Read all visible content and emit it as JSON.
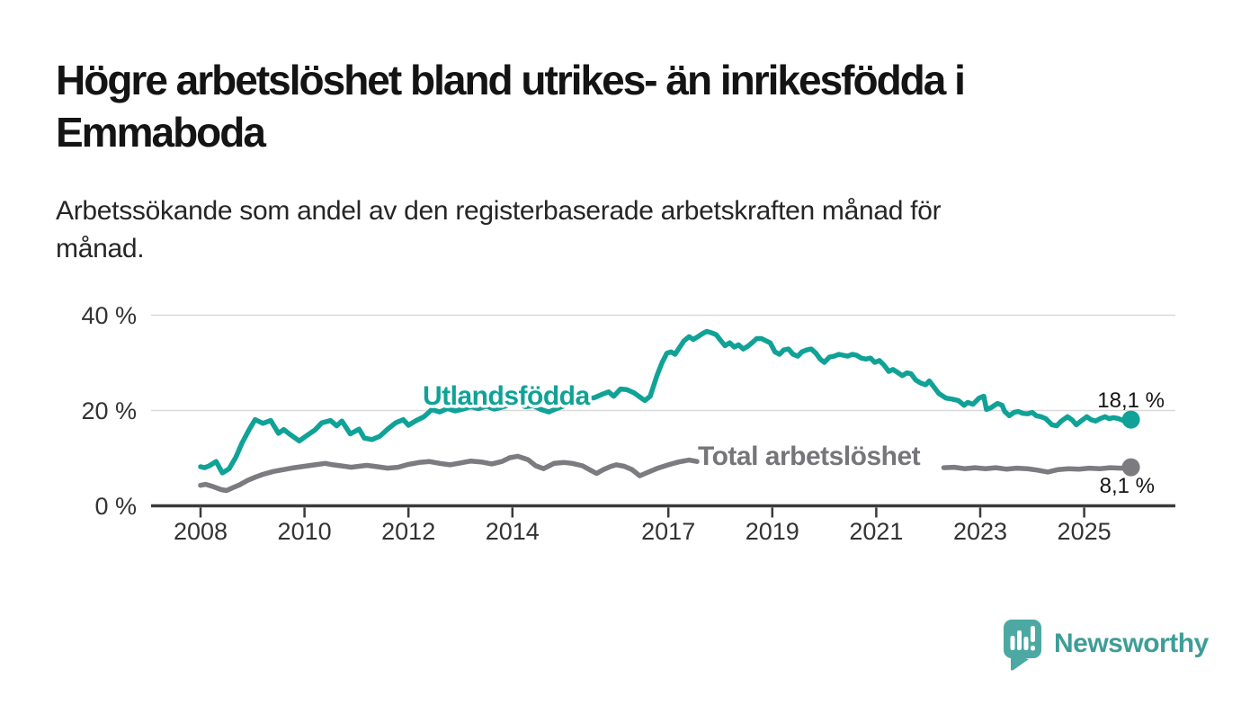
{
  "header": {
    "title": "Högre arbetslöshet bland utrikes- än inrikesfödda i Emmaboda",
    "title_lines": [
      "Högre arbetslöshet bland utrikes- än inrikesfödda i",
      "Emmaboda"
    ],
    "subtitle": "Arbetssökande som andel av den registerbaserade arbetskraften månad för månad.",
    "subtitle_lines": [
      "Arbetssökande som andel av den registerbaserade arbetskraften månad för",
      "månad."
    ]
  },
  "branding": {
    "name": "Newsworthy",
    "icon": "speech-bubble-bar-chart-icon",
    "text_color": "#3E9D97",
    "icon_color": "#4CA8A2"
  },
  "colors": {
    "foreign_born_line": "#10A297",
    "total_line": "#7B7B80",
    "total_label": "#75757A",
    "grid": "#D9D9D9",
    "axis": "#3A3A3A",
    "tick_text": "#333333",
    "value_text": "#141414"
  },
  "chart_data": {
    "type": "line",
    "unit": "%",
    "xlim": [
      2007.05,
      2026.75
    ],
    "ylim": [
      0,
      42
    ],
    "grid": "horizontal-only",
    "legend_position": "inline-labels",
    "y_ticks": [
      {
        "value": 0,
        "label": "0 %"
      },
      {
        "value": 20,
        "label": "20 %"
      },
      {
        "value": 40,
        "label": "40 %"
      }
    ],
    "x_ticks": [
      {
        "year": 2008,
        "label": "2008"
      },
      {
        "year": 2010,
        "label": "2010"
      },
      {
        "year": 2012,
        "label": "2012"
      },
      {
        "year": 2014,
        "label": "2014"
      },
      {
        "year": 2017,
        "label": "2017"
      },
      {
        "year": 2019,
        "label": "2019"
      },
      {
        "year": 2021,
        "label": "2021"
      },
      {
        "year": 2023,
        "label": "2023"
      },
      {
        "year": 2025,
        "label": "2025"
      }
    ],
    "series": [
      {
        "name": "Utlandsfödda",
        "color": "#10A297",
        "end_value": 18.1,
        "end_label": "18,1 %",
        "points": [
          [
            2008.0,
            8.2
          ],
          [
            2008.08,
            8.0
          ],
          [
            2008.17,
            8.4
          ],
          [
            2008.3,
            9.3
          ],
          [
            2008.42,
            6.9
          ],
          [
            2008.55,
            7.8
          ],
          [
            2008.68,
            10.2
          ],
          [
            2008.8,
            13.2
          ],
          [
            2008.93,
            15.9
          ],
          [
            2009.05,
            18.1
          ],
          [
            2009.2,
            17.3
          ],
          [
            2009.35,
            17.9
          ],
          [
            2009.5,
            15.2
          ],
          [
            2009.6,
            16.0
          ],
          [
            2009.72,
            15.0
          ],
          [
            2009.9,
            13.6
          ],
          [
            2010.05,
            14.8
          ],
          [
            2010.2,
            15.9
          ],
          [
            2010.33,
            17.4
          ],
          [
            2010.5,
            17.9
          ],
          [
            2010.62,
            16.8
          ],
          [
            2010.72,
            17.8
          ],
          [
            2010.88,
            15.1
          ],
          [
            2011.05,
            16.1
          ],
          [
            2011.15,
            14.2
          ],
          [
            2011.3,
            13.9
          ],
          [
            2011.45,
            14.6
          ],
          [
            2011.6,
            16.1
          ],
          [
            2011.75,
            17.4
          ],
          [
            2011.9,
            18.1
          ],
          [
            2012.0,
            16.9
          ],
          [
            2012.15,
            17.9
          ],
          [
            2012.3,
            18.7
          ],
          [
            2012.45,
            20.2
          ],
          [
            2012.6,
            19.7
          ],
          [
            2012.75,
            20.4
          ],
          [
            2012.9,
            19.9
          ],
          [
            2013.05,
            20.3
          ],
          [
            2013.2,
            20.8
          ],
          [
            2013.35,
            20.4
          ],
          [
            2013.5,
            20.9
          ],
          [
            2013.65,
            20.3
          ],
          [
            2013.8,
            20.7
          ],
          [
            2013.95,
            21.2
          ],
          [
            2014.1,
            21.4
          ],
          [
            2014.25,
            20.8
          ],
          [
            2014.4,
            21.0
          ],
          [
            2014.55,
            20.2
          ],
          [
            2014.7,
            19.7
          ],
          [
            2014.85,
            20.4
          ],
          [
            2015.0,
            21.0
          ],
          [
            2015.15,
            21.6
          ],
          [
            2015.3,
            21.9
          ],
          [
            2015.45,
            22.3
          ],
          [
            2015.6,
            22.8
          ],
          [
            2015.75,
            23.5
          ],
          [
            2015.85,
            23.9
          ],
          [
            2015.95,
            23.0
          ],
          [
            2016.08,
            24.5
          ],
          [
            2016.2,
            24.4
          ],
          [
            2016.34,
            23.7
          ],
          [
            2016.48,
            22.6
          ],
          [
            2016.55,
            22.1
          ],
          [
            2016.65,
            23.0
          ],
          [
            2016.78,
            27.3
          ],
          [
            2016.88,
            30.1
          ],
          [
            2016.97,
            32.0
          ],
          [
            2017.05,
            32.3
          ],
          [
            2017.13,
            31.8
          ],
          [
            2017.22,
            33.3
          ],
          [
            2017.3,
            34.6
          ],
          [
            2017.4,
            35.5
          ],
          [
            2017.48,
            34.9
          ],
          [
            2017.57,
            35.5
          ],
          [
            2017.65,
            36.1
          ],
          [
            2017.74,
            36.6
          ],
          [
            2017.83,
            36.3
          ],
          [
            2017.92,
            35.9
          ],
          [
            2018.0,
            34.8
          ],
          [
            2018.09,
            33.6
          ],
          [
            2018.18,
            34.2
          ],
          [
            2018.27,
            33.3
          ],
          [
            2018.35,
            33.8
          ],
          [
            2018.44,
            32.9
          ],
          [
            2018.53,
            33.5
          ],
          [
            2018.61,
            34.2
          ],
          [
            2018.7,
            35.1
          ],
          [
            2018.79,
            35.1
          ],
          [
            2018.88,
            34.6
          ],
          [
            2018.96,
            34.2
          ],
          [
            2019.05,
            32.3
          ],
          [
            2019.14,
            31.8
          ],
          [
            2019.22,
            32.7
          ],
          [
            2019.31,
            32.9
          ],
          [
            2019.4,
            31.8
          ],
          [
            2019.49,
            31.4
          ],
          [
            2019.57,
            32.3
          ],
          [
            2019.66,
            32.7
          ],
          [
            2019.75,
            32.9
          ],
          [
            2019.84,
            32.0
          ],
          [
            2019.92,
            30.8
          ],
          [
            2020.0,
            30.1
          ],
          [
            2020.1,
            31.2
          ],
          [
            2020.19,
            31.4
          ],
          [
            2020.28,
            31.8
          ],
          [
            2020.36,
            31.6
          ],
          [
            2020.45,
            31.4
          ],
          [
            2020.54,
            31.8
          ],
          [
            2020.62,
            31.6
          ],
          [
            2020.71,
            31.0
          ],
          [
            2020.8,
            30.8
          ],
          [
            2020.89,
            31.0
          ],
          [
            2020.97,
            30.1
          ],
          [
            2021.06,
            30.5
          ],
          [
            2021.15,
            29.5
          ],
          [
            2021.24,
            28.2
          ],
          [
            2021.32,
            28.6
          ],
          [
            2021.41,
            28.0
          ],
          [
            2021.5,
            27.3
          ],
          [
            2021.59,
            27.9
          ],
          [
            2021.67,
            27.7
          ],
          [
            2021.76,
            26.4
          ],
          [
            2021.85,
            25.8
          ],
          [
            2021.95,
            25.4
          ],
          [
            2022.02,
            26.2
          ],
          [
            2022.11,
            24.9
          ],
          [
            2022.2,
            23.6
          ],
          [
            2022.34,
            22.6
          ],
          [
            2022.46,
            22.4
          ],
          [
            2022.58,
            22.1
          ],
          [
            2022.69,
            21.1
          ],
          [
            2022.76,
            21.7
          ],
          [
            2022.86,
            21.3
          ],
          [
            2022.98,
            22.6
          ],
          [
            2023.07,
            23.0
          ],
          [
            2023.12,
            20.2
          ],
          [
            2023.21,
            20.6
          ],
          [
            2023.33,
            21.5
          ],
          [
            2023.42,
            21.1
          ],
          [
            2023.47,
            19.8
          ],
          [
            2023.56,
            18.9
          ],
          [
            2023.65,
            19.6
          ],
          [
            2023.73,
            19.8
          ],
          [
            2023.82,
            19.4
          ],
          [
            2023.91,
            19.3
          ],
          [
            2024.0,
            19.6
          ],
          [
            2024.08,
            18.9
          ],
          [
            2024.17,
            18.7
          ],
          [
            2024.26,
            18.3
          ],
          [
            2024.38,
            17.0
          ],
          [
            2024.47,
            16.8
          ],
          [
            2024.56,
            17.8
          ],
          [
            2024.68,
            18.7
          ],
          [
            2024.77,
            18.0
          ],
          [
            2024.85,
            17.0
          ],
          [
            2024.94,
            17.8
          ],
          [
            2025.05,
            18.7
          ],
          [
            2025.13,
            18.1
          ],
          [
            2025.22,
            17.8
          ],
          [
            2025.31,
            18.3
          ],
          [
            2025.4,
            18.7
          ],
          [
            2025.48,
            18.3
          ],
          [
            2025.57,
            18.5
          ],
          [
            2025.66,
            18.3
          ],
          [
            2025.75,
            17.9
          ],
          [
            2025.83,
            17.2
          ],
          [
            2025.9,
            18.1
          ]
        ]
      },
      {
        "name": "Total arbetslöshet",
        "color": "#7B7B80",
        "end_value": 8.1,
        "end_label": "8,1 %",
        "segments": [
          [
            [
              2008.0,
              4.3
            ],
            [
              2008.1,
              4.5
            ],
            [
              2008.25,
              4.0
            ],
            [
              2008.4,
              3.4
            ],
            [
              2008.5,
              3.2
            ],
            [
              2008.62,
              3.8
            ],
            [
              2008.75,
              4.4
            ],
            [
              2008.9,
              5.3
            ],
            [
              2009.05,
              6.0
            ],
            [
              2009.2,
              6.6
            ],
            [
              2009.4,
              7.2
            ],
            [
              2009.6,
              7.6
            ],
            [
              2009.8,
              8.0
            ],
            [
              2010.0,
              8.3
            ],
            [
              2010.2,
              8.6
            ],
            [
              2010.4,
              8.9
            ],
            [
              2010.55,
              8.6
            ],
            [
              2010.7,
              8.4
            ],
            [
              2010.9,
              8.1
            ],
            [
              2011.05,
              8.3
            ],
            [
              2011.2,
              8.5
            ],
            [
              2011.4,
              8.2
            ],
            [
              2011.6,
              7.9
            ],
            [
              2011.8,
              8.1
            ],
            [
              2012.0,
              8.7
            ],
            [
              2012.2,
              9.1
            ],
            [
              2012.4,
              9.3
            ],
            [
              2012.6,
              8.9
            ],
            [
              2012.8,
              8.6
            ],
            [
              2013.0,
              9.0
            ],
            [
              2013.2,
              9.4
            ],
            [
              2013.4,
              9.2
            ],
            [
              2013.6,
              8.8
            ],
            [
              2013.8,
              9.3
            ],
            [
              2013.95,
              10.1
            ],
            [
              2014.1,
              10.4
            ],
            [
              2014.3,
              9.7
            ],
            [
              2014.45,
              8.4
            ],
            [
              2014.6,
              7.8
            ],
            [
              2014.8,
              8.9
            ],
            [
              2015.0,
              9.1
            ],
            [
              2015.15,
              8.9
            ],
            [
              2015.35,
              8.4
            ],
            [
              2015.5,
              7.5
            ],
            [
              2015.62,
              6.8
            ],
            [
              2015.75,
              7.6
            ],
            [
              2015.9,
              8.3
            ],
            [
              2016.0,
              8.6
            ],
            [
              2016.15,
              8.3
            ],
            [
              2016.3,
              7.6
            ],
            [
              2016.45,
              6.3
            ],
            [
              2016.6,
              7.0
            ],
            [
              2016.8,
              7.9
            ],
            [
              2017.0,
              8.6
            ],
            [
              2017.2,
              9.2
            ],
            [
              2017.4,
              9.6
            ],
            [
              2017.55,
              9.3
            ]
          ],
          [
            [
              2022.3,
              8.0
            ],
            [
              2022.5,
              8.1
            ],
            [
              2022.7,
              7.8
            ],
            [
              2022.9,
              8.0
            ],
            [
              2023.1,
              7.8
            ],
            [
              2023.3,
              8.0
            ],
            [
              2023.5,
              7.7
            ],
            [
              2023.7,
              7.9
            ],
            [
              2023.9,
              7.8
            ],
            [
              2024.1,
              7.5
            ],
            [
              2024.3,
              7.1
            ],
            [
              2024.5,
              7.6
            ],
            [
              2024.7,
              7.8
            ],
            [
              2024.9,
              7.7
            ],
            [
              2025.1,
              7.9
            ],
            [
              2025.3,
              7.8
            ],
            [
              2025.5,
              8.0
            ],
            [
              2025.7,
              7.9
            ],
            [
              2025.9,
              8.1
            ]
          ]
        ]
      }
    ]
  }
}
